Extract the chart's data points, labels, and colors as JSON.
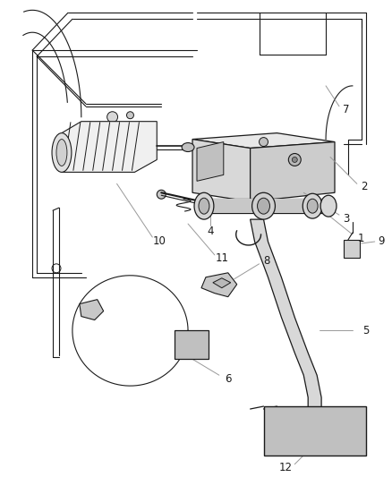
{
  "background_color": "#ffffff",
  "line_color": "#1a1a1a",
  "callout_color": "#999999",
  "fig_width": 4.38,
  "fig_height": 5.33,
  "dpi": 100
}
